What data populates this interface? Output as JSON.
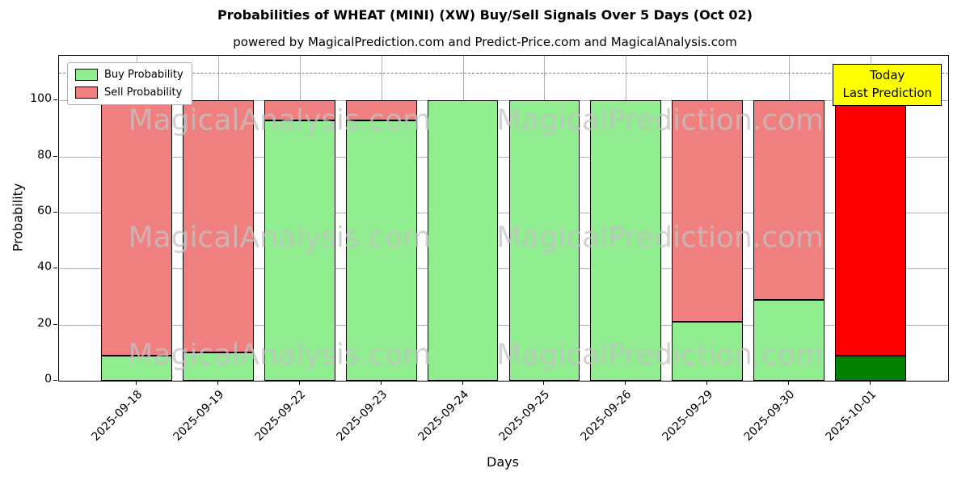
{
  "chart_data": {
    "type": "bar",
    "stacked": true,
    "title": "Probabilities of WHEAT (MINI) (XW) Buy/Sell Signals Over 5 Days (Oct 02)",
    "subtitle": "powered by MagicalPrediction.com and Predict-Price.com and MagicalAnalysis.com",
    "xlabel": "Days",
    "ylabel": "Probability",
    "categories": [
      "2025-09-18",
      "2025-09-19",
      "2025-09-22",
      "2025-09-23",
      "2025-09-24",
      "2025-09-25",
      "2025-09-26",
      "2025-09-29",
      "2025-09-30",
      "2025-10-01"
    ],
    "series": [
      {
        "name": "Buy Probability",
        "color": "#90EE90",
        "values": [
          9,
          10,
          93,
          93,
          100,
          100,
          100,
          21,
          29,
          9
        ]
      },
      {
        "name": "Sell Probability",
        "color": "#F08080",
        "values": [
          91,
          90,
          7,
          7,
          0,
          0,
          0,
          79,
          71,
          91
        ]
      }
    ],
    "last_bar_colors": {
      "buy": "#008000",
      "sell": "#FF0000"
    },
    "ylim": [
      0,
      116
    ],
    "yticks": [
      0,
      20,
      40,
      60,
      80,
      100
    ],
    "dashed_line_y": 110,
    "grid": true,
    "legend_position": "upper-left",
    "annotation": {
      "lines": [
        "Today",
        "Last Prediction"
      ],
      "bg": "#FFFF00"
    },
    "watermark_left": "MagicalAnalysis.com",
    "watermark_right": "MagicalPrediction.com"
  }
}
